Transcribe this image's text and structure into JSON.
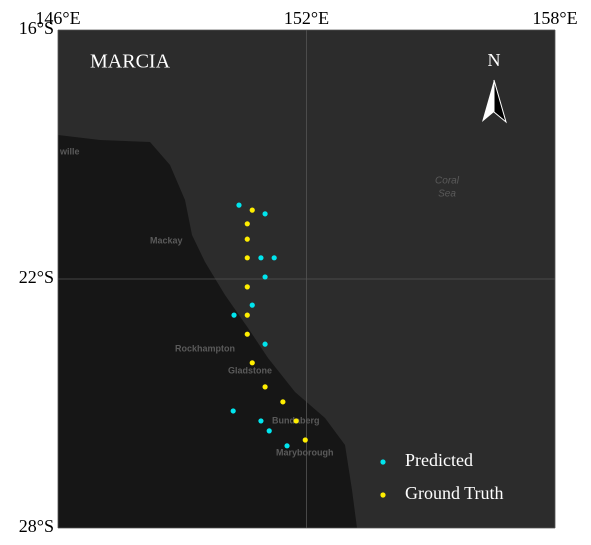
{
  "chart_data": {
    "type": "scatter",
    "title": "MARCIA",
    "north_label": "N",
    "xlim": [
      146,
      158
    ],
    "xticks": [
      {
        "value": 146,
        "label": "146°E"
      },
      {
        "value": 152,
        "label": "152°E"
      },
      {
        "value": 158,
        "label": "158°E"
      }
    ],
    "ylim": [
      -28,
      -16
    ],
    "yticks": [
      {
        "value": -16,
        "label": "16°S"
      },
      {
        "value": -22,
        "label": "22°S"
      },
      {
        "value": -28,
        "label": "28°S"
      }
    ],
    "grid": true,
    "legend": "lower right",
    "series": [
      {
        "name": "Predicted",
        "color": "#00e5ee",
        "x": [
          150.37,
          151.0,
          150.9,
          151.22,
          151.0,
          150.69,
          150.25,
          151.0,
          150.23,
          150.9,
          151.1,
          151.53
        ],
        "values": [
          -20.22,
          -20.43,
          -21.49,
          -21.49,
          -21.95,
          -22.63,
          -22.87,
          -23.57,
          -25.18,
          -25.42,
          -25.66,
          -26.02
        ]
      },
      {
        "name": "Ground Truth",
        "color": "#ffee00",
        "x": [
          150.69,
          150.57,
          150.57,
          150.57,
          150.57,
          150.57,
          150.57,
          150.69,
          151.0,
          151.43,
          151.75,
          151.97
        ],
        "values": [
          -20.34,
          -20.67,
          -21.04,
          -21.49,
          -22.19,
          -22.87,
          -23.33,
          -24.02,
          -24.6,
          -24.96,
          -25.42,
          -25.88
        ]
      }
    ],
    "place_labels": [
      "wille",
      "Mackay",
      "Rockhampton",
      "Gladstone",
      "Bundaberg",
      "Maryborough",
      "Coral",
      "Sea"
    ]
  }
}
